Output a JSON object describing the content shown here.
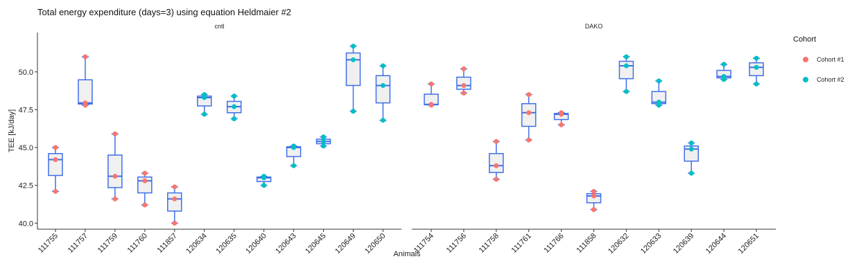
{
  "chart_data": {
    "type": "box",
    "title": "Total energy expenditure (days=3) using equation Heldmaier #2",
    "xlabel": "Animals",
    "ylabel": "TEE [kJ/day]",
    "ylim": [
      39.6,
      52.6
    ],
    "yticks": [
      "40.0",
      "42.5",
      "45.0",
      "47.5",
      "50.0"
    ],
    "legend": {
      "title": "Cohort",
      "position": "right",
      "entries": [
        {
          "name": "Cohort #1",
          "color": "#F8766D"
        },
        {
          "name": "Cohort #2",
          "color": "#00BFC4"
        }
      ]
    },
    "box_color": "#3F6FE8",
    "box_fill": "#F0F0F0",
    "panels": [
      {
        "name": "cntl",
        "groups": [
          {
            "label": "111755",
            "cohort": 1,
            "points": [
              45.0,
              44.2,
              42.1
            ]
          },
          {
            "label": "111757",
            "cohort": 1,
            "points": [
              51.0,
              47.95,
              47.8
            ]
          },
          {
            "label": "111759",
            "cohort": 1,
            "points": [
              45.9,
              43.1,
              41.6
            ]
          },
          {
            "label": "111760",
            "cohort": 1,
            "points": [
              43.3,
              42.8,
              41.2
            ]
          },
          {
            "label": "111857",
            "cohort": 1,
            "points": [
              42.4,
              41.6,
              40.0
            ]
          },
          {
            "label": "120634",
            "cohort": 2,
            "points": [
              48.5,
              48.3,
              47.2
            ]
          },
          {
            "label": "120635",
            "cohort": 2,
            "points": [
              48.4,
              47.7,
              46.9
            ]
          },
          {
            "label": "120640",
            "cohort": 2,
            "points": [
              43.1,
              43.0,
              42.5
            ]
          },
          {
            "label": "120643",
            "cohort": 2,
            "points": [
              45.1,
              45.0,
              43.8
            ]
          },
          {
            "label": "120645",
            "cohort": 2,
            "points": [
              45.7,
              45.4,
              45.1
            ]
          },
          {
            "label": "120649",
            "cohort": 2,
            "points": [
              51.7,
              50.8,
              47.4
            ]
          },
          {
            "label": "120650",
            "cohort": 2,
            "points": [
              50.4,
              49.1,
              46.8
            ]
          }
        ]
      },
      {
        "name": "DAKO",
        "groups": [
          {
            "label": "111754",
            "cohort": 1,
            "points": [
              49.2,
              47.85,
              47.8
            ]
          },
          {
            "label": "111756",
            "cohort": 1,
            "points": [
              50.2,
              49.1,
              48.6
            ]
          },
          {
            "label": "111758",
            "cohort": 1,
            "points": [
              45.4,
              43.8,
              42.9
            ]
          },
          {
            "label": "111761",
            "cohort": 1,
            "points": [
              48.5,
              47.3,
              45.5
            ]
          },
          {
            "label": "111766",
            "cohort": 1,
            "points": [
              47.3,
              47.2,
              46.5
            ]
          },
          {
            "label": "111858",
            "cohort": 1,
            "points": [
              42.1,
              41.8,
              40.9
            ]
          },
          {
            "label": "120632",
            "cohort": 2,
            "points": [
              51.0,
              50.4,
              48.7
            ]
          },
          {
            "label": "120633",
            "cohort": 2,
            "points": [
              49.4,
              48.0,
              47.8
            ]
          },
          {
            "label": "120639",
            "cohort": 2,
            "points": [
              45.3,
              44.9,
              43.3
            ]
          },
          {
            "label": "120644",
            "cohort": 2,
            "points": [
              50.5,
              49.7,
              49.5
            ]
          },
          {
            "label": "120651",
            "cohort": 2,
            "points": [
              50.9,
              50.3,
              49.2
            ]
          }
        ]
      }
    ]
  }
}
